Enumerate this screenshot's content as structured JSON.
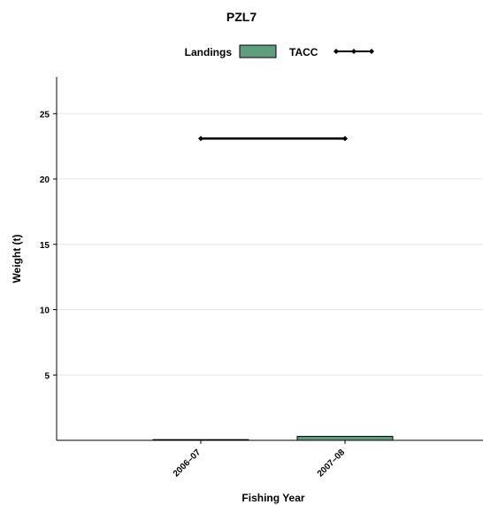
{
  "chart_data": {
    "type": "bar",
    "title": "PZL7",
    "xlabel": "Fishing Year",
    "ylabel": "Weight (t)",
    "categories": [
      "2006–07",
      "2007–08"
    ],
    "ylim": [
      0,
      27.8
    ],
    "yticks": [
      5,
      10,
      15,
      20,
      25
    ],
    "grid": "horizontal",
    "legend_position": "top",
    "series": [
      {
        "name": "Landings",
        "type": "bar",
        "color": "#5f9e7d",
        "values": [
          0.05,
          0.3
        ]
      },
      {
        "name": "TACC",
        "type": "line",
        "color": "#000000",
        "marker": "diamond",
        "values": [
          23.1,
          23.1
        ]
      }
    ]
  }
}
